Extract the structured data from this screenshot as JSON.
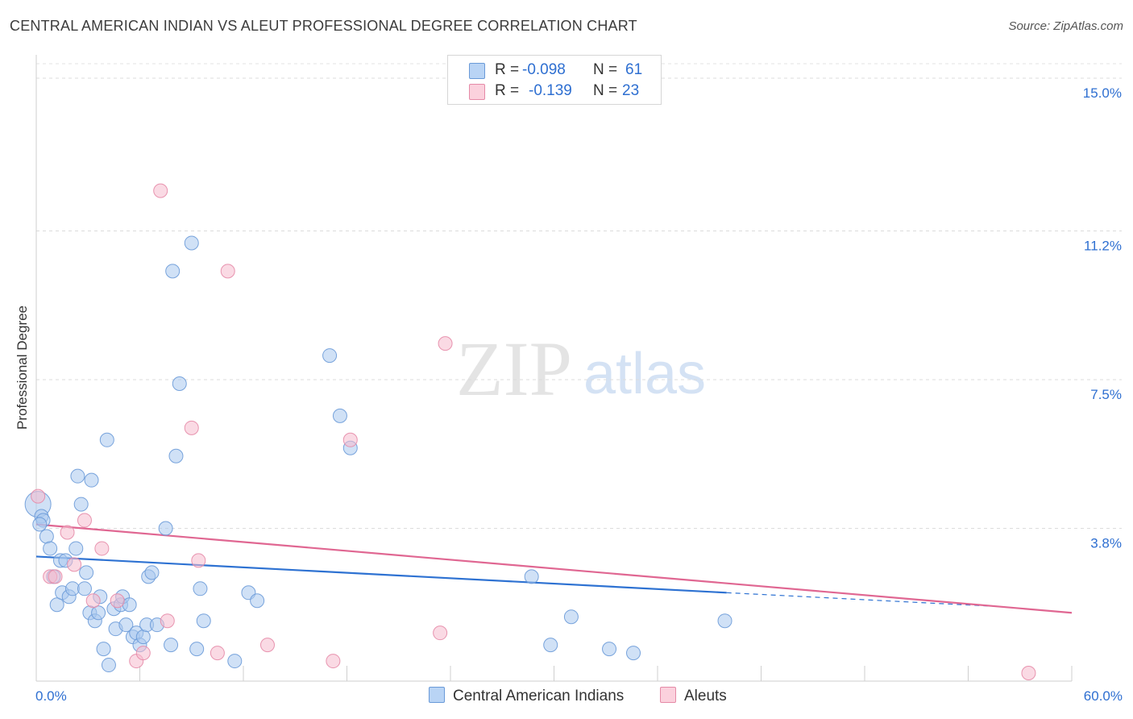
{
  "title": "CENTRAL AMERICAN INDIAN VS ALEUT PROFESSIONAL DEGREE CORRELATION CHART",
  "source": "Source: ZipAtlas.com",
  "watermark": {
    "zip": "ZIP",
    "atlas": "atlas"
  },
  "colors": {
    "blue_fill": "#a9c8ef",
    "blue_stroke": "#6a9ad8",
    "blue_line": "#2e72d2",
    "pink_fill": "#f6bccd",
    "pink_stroke": "#e58aa7",
    "pink_line": "#e06792",
    "axis_label": "#2e6fd1"
  },
  "legend_top": {
    "rows": [
      {
        "series": "blue",
        "r_label": "R =",
        "r_value": "-0.098",
        "n_label": "N =",
        "n_value": "61"
      },
      {
        "series": "pink",
        "r_label": "R =",
        "r_value": "-0.139",
        "n_label": "N =",
        "n_value": "23"
      }
    ]
  },
  "legend_bottom": [
    {
      "series": "blue",
      "label": "Central American Indians"
    },
    {
      "series": "pink",
      "label": "Aleuts"
    }
  ],
  "chart_data": {
    "type": "scatter",
    "title": "CENTRAL AMERICAN INDIAN VS ALEUT PROFESSIONAL DEGREE CORRELATION CHART",
    "xlabel": "",
    "ylabel": "Professional Degree",
    "xlim": [
      0,
      60
    ],
    "ylim": [
      0,
      15.3
    ],
    "x_tick_labels": [
      "0.0%",
      "60.0%"
    ],
    "y_ticks": [
      {
        "value": 3.8,
        "label": "3.8%"
      },
      {
        "value": 7.5,
        "label": "7.5%"
      },
      {
        "value": 11.2,
        "label": "11.2%"
      },
      {
        "value": 15.0,
        "label": "15.0%"
      }
    ],
    "grid": true,
    "legend_position": "top-center",
    "series": [
      {
        "name": "Central American Indians",
        "color": "#a9c8ef",
        "r": -0.098,
        "n": 61,
        "trend": {
          "x0": 0,
          "y0": 3.1,
          "x1": 40,
          "y1": 2.2,
          "dashed_to_x": 56,
          "dashed_to_y": 1.85
        },
        "points": [
          [
            0.1,
            4.4
          ],
          [
            0.3,
            4.1
          ],
          [
            0.4,
            4.0
          ],
          [
            0.6,
            3.6
          ],
          [
            0.8,
            3.3
          ],
          [
            1.0,
            2.6
          ],
          [
            1.2,
            1.9
          ],
          [
            1.4,
            3.0
          ],
          [
            1.5,
            2.2
          ],
          [
            1.7,
            3.0
          ],
          [
            1.9,
            2.1
          ],
          [
            2.1,
            2.3
          ],
          [
            2.3,
            3.3
          ],
          [
            2.4,
            5.1
          ],
          [
            2.6,
            4.4
          ],
          [
            2.8,
            2.3
          ],
          [
            2.9,
            2.7
          ],
          [
            3.1,
            1.7
          ],
          [
            3.2,
            5.0
          ],
          [
            3.4,
            1.5
          ],
          [
            3.6,
            1.7
          ],
          [
            3.7,
            2.1
          ],
          [
            3.9,
            0.8
          ],
          [
            4.1,
            6.0
          ],
          [
            4.2,
            0.4
          ],
          [
            4.5,
            1.8
          ],
          [
            4.6,
            1.3
          ],
          [
            4.9,
            1.9
          ],
          [
            5.0,
            2.1
          ],
          [
            5.2,
            1.4
          ],
          [
            5.4,
            1.9
          ],
          [
            5.6,
            1.1
          ],
          [
            5.8,
            1.2
          ],
          [
            6.0,
            0.9
          ],
          [
            6.2,
            1.1
          ],
          [
            6.4,
            1.4
          ],
          [
            6.5,
            2.6
          ],
          [
            6.7,
            2.7
          ],
          [
            7.0,
            1.4
          ],
          [
            7.5,
            3.8
          ],
          [
            7.8,
            0.9
          ],
          [
            7.9,
            10.2
          ],
          [
            8.1,
            5.6
          ],
          [
            8.3,
            7.4
          ],
          [
            9.0,
            10.9
          ],
          [
            9.3,
            0.8
          ],
          [
            9.5,
            2.3
          ],
          [
            9.7,
            1.5
          ],
          [
            11.5,
            0.5
          ],
          [
            12.3,
            2.2
          ],
          [
            12.8,
            2.0
          ],
          [
            17.0,
            8.1
          ],
          [
            17.6,
            6.6
          ],
          [
            18.2,
            5.8
          ],
          [
            28.7,
            2.6
          ],
          [
            29.8,
            0.9
          ],
          [
            31.0,
            1.6
          ],
          [
            33.2,
            0.8
          ],
          [
            34.6,
            0.7
          ],
          [
            39.9,
            1.5
          ],
          [
            0.2,
            3.9
          ]
        ]
      },
      {
        "name": "Aleuts",
        "color": "#f6bccd",
        "r": -0.139,
        "n": 23,
        "trend": {
          "x0": 0,
          "y0": 3.9,
          "x1": 60,
          "y1": 1.7
        },
        "points": [
          [
            0.1,
            4.6
          ],
          [
            0.8,
            2.6
          ],
          [
            1.1,
            2.6
          ],
          [
            1.8,
            3.7
          ],
          [
            2.2,
            2.9
          ],
          [
            2.8,
            4.0
          ],
          [
            3.3,
            2.0
          ],
          [
            3.8,
            3.3
          ],
          [
            4.7,
            2.0
          ],
          [
            5.8,
            0.5
          ],
          [
            6.2,
            0.7
          ],
          [
            7.2,
            12.2
          ],
          [
            7.6,
            1.5
          ],
          [
            9.0,
            6.3
          ],
          [
            9.4,
            3.0
          ],
          [
            10.5,
            0.7
          ],
          [
            11.1,
            10.2
          ],
          [
            13.4,
            0.9
          ],
          [
            17.2,
            0.5
          ],
          [
            18.2,
            6.0
          ],
          [
            23.4,
            1.2
          ],
          [
            23.7,
            8.4
          ],
          [
            57.5,
            0.2
          ]
        ]
      }
    ]
  }
}
